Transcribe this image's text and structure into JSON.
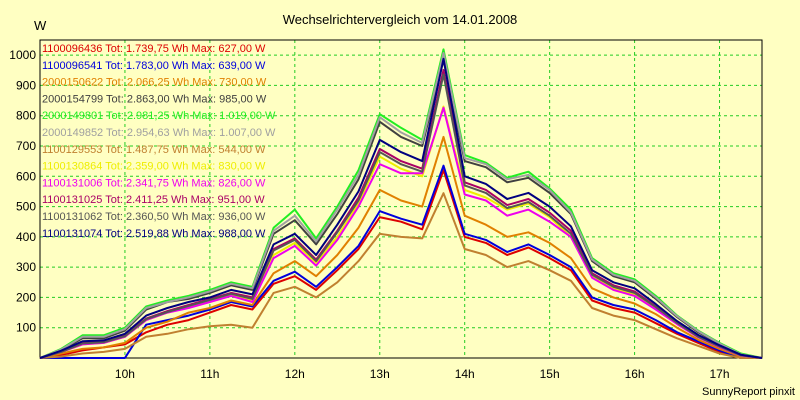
{
  "chart_data": {
    "type": "line",
    "title": "Wechselrichtervergleich vom 14.01.2008",
    "ylabel": "W",
    "xlabel": "",
    "footer": "SunnyReport pinxit",
    "grid": true,
    "legend_position": "top-left",
    "ylim": [
      0,
      1050
    ],
    "xlim": [
      9.0,
      17.5
    ],
    "yticks": [
      100,
      200,
      300,
      400,
      500,
      600,
      700,
      800,
      900,
      1000
    ],
    "xticks": [
      {
        "value": 10,
        "label": "10h"
      },
      {
        "value": 11,
        "label": "11h"
      },
      {
        "value": 12,
        "label": "12h"
      },
      {
        "value": 13,
        "label": "13h"
      },
      {
        "value": 14,
        "label": "14h"
      },
      {
        "value": 15,
        "label": "15h"
      },
      {
        "value": 16,
        "label": "16h"
      },
      {
        "value": 17,
        "label": "17h"
      }
    ],
    "x": [
      9.0,
      9.25,
      9.5,
      9.75,
      10.0,
      10.25,
      10.5,
      10.75,
      11.0,
      11.25,
      11.5,
      11.75,
      12.0,
      12.25,
      12.5,
      12.75,
      13.0,
      13.25,
      13.5,
      13.75,
      14.0,
      14.25,
      14.5,
      14.75,
      15.0,
      15.25,
      15.5,
      15.75,
      16.0,
      16.25,
      16.5,
      16.75,
      17.0,
      17.25,
      17.5
    ],
    "series": [
      {
        "name": "1100096436",
        "legend": "1100096436 Tot: 1.739,75 Wh Max: 627,00 W",
        "color": "#dd0000",
        "values": [
          0,
          10,
          25,
          35,
          45,
          85,
          110,
          125,
          150,
          175,
          160,
          245,
          270,
          225,
          290,
          360,
          465,
          450,
          425,
          620,
          400,
          380,
          340,
          365,
          330,
          290,
          190,
          165,
          150,
          115,
          80,
          50,
          20,
          0,
          0
        ]
      },
      {
        "name": "1100096541",
        "legend": "1100096541 Tot: 1.783,00 Wh Max: 639,00 W",
        "color": "#0000dd",
        "values": [
          0,
          0,
          0,
          0,
          0,
          110,
          125,
          140,
          160,
          185,
          170,
          255,
          285,
          235,
          300,
          370,
          485,
          460,
          440,
          635,
          410,
          390,
          350,
          375,
          340,
          300,
          200,
          175,
          160,
          125,
          85,
          55,
          25,
          0,
          0
        ]
      },
      {
        "name": "2000150622",
        "legend": "2000150622 Tot: 2.066,25 Wh Max: 730,00 W",
        "color": "#e08000",
        "values": [
          0,
          15,
          30,
          35,
          50,
          100,
          120,
          150,
          165,
          190,
          175,
          280,
          320,
          270,
          340,
          430,
          555,
          520,
          500,
          730,
          470,
          440,
          400,
          415,
          380,
          330,
          230,
          200,
          180,
          145,
          100,
          60,
          30,
          5,
          0
        ]
      },
      {
        "name": "2000154799",
        "legend": "2000154799 Tot: 2.863,00 Wh Max: 985,00 W",
        "color": "#404040",
        "values": [
          0,
          25,
          65,
          65,
          90,
          160,
          185,
          195,
          215,
          240,
          225,
          410,
          455,
          375,
          475,
          590,
          780,
          730,
          700,
          985,
          650,
          630,
          580,
          595,
          545,
          475,
          320,
          270,
          250,
          195,
          135,
          85,
          45,
          10,
          0
        ]
      },
      {
        "name": "2000149801",
        "legend": "2000149801 Tot: 2.981,25 Wh Max: 1.019,00 W",
        "color": "#22ee22",
        "values": [
          0,
          30,
          75,
          75,
          100,
          170,
          190,
          205,
          225,
          250,
          235,
          430,
          490,
          395,
          500,
          620,
          805,
          760,
          720,
          1019,
          670,
          645,
          595,
          615,
          560,
          490,
          330,
          280,
          260,
          205,
          140,
          90,
          50,
          15,
          0
        ]
      },
      {
        "name": "2000149852",
        "legend": "2000149852 Tot: 2.954,63 Wh Max: 1.007,00 W",
        "color": "#a0a0a0",
        "values": [
          0,
          28,
          70,
          70,
          95,
          165,
          185,
          200,
          220,
          245,
          230,
          420,
          470,
          385,
          490,
          605,
          795,
          745,
          710,
          1007,
          660,
          640,
          590,
          605,
          555,
          480,
          325,
          275,
          255,
          200,
          138,
          88,
          48,
          12,
          0
        ]
      },
      {
        "name": "1100129553",
        "legend": "1100129553 Tot: 1.487,75 Wh Max: 544,00 W",
        "color": "#c08030",
        "values": [
          0,
          5,
          15,
          20,
          30,
          70,
          80,
          95,
          105,
          110,
          100,
          215,
          235,
          200,
          250,
          320,
          410,
          400,
          395,
          544,
          360,
          340,
          300,
          320,
          290,
          255,
          165,
          140,
          125,
          95,
          65,
          40,
          15,
          0,
          0
        ]
      },
      {
        "name": "1100130864",
        "legend": "1100130864 Tot: 2.359,00 Wh Max: 830,00 W",
        "color": "#eeee00",
        "values": [
          0,
          20,
          45,
          50,
          70,
          125,
          150,
          170,
          190,
          210,
          190,
          340,
          380,
          315,
          400,
          510,
          665,
          625,
          600,
          830,
          555,
          530,
          490,
          510,
          465,
          400,
          270,
          230,
          210,
          165,
          115,
          70,
          38,
          8,
          0
        ]
      },
      {
        "name": "1100131006",
        "legend": "1100131006 Tot: 2.341,75 Wh Max: 826,00 W",
        "color": "#ee00ee",
        "values": [
          0,
          20,
          45,
          50,
          70,
          125,
          150,
          165,
          185,
          205,
          185,
          330,
          370,
          305,
          390,
          500,
          640,
          610,
          610,
          826,
          540,
          520,
          470,
          490,
          450,
          400,
          265,
          225,
          205,
          160,
          112,
          68,
          36,
          8,
          0
        ]
      },
      {
        "name": "1100131025",
        "legend": "1100131025 Tot: 2.411,25 Wh Max: 951,00 W",
        "color": "#aa0066",
        "values": [
          0,
          22,
          50,
          55,
          75,
          130,
          155,
          175,
          195,
          215,
          200,
          360,
          395,
          325,
          420,
          530,
          690,
          650,
          625,
          951,
          580,
          555,
          505,
          525,
          480,
          420,
          280,
          240,
          220,
          170,
          118,
          72,
          40,
          10,
          0
        ]
      },
      {
        "name": "1100131062",
        "legend": "1100131062 Tot: 2.360,50 Wh Max: 936,00 W",
        "color": "#555555",
        "values": [
          0,
          20,
          48,
          52,
          72,
          128,
          152,
          172,
          192,
          212,
          195,
          355,
          390,
          320,
          415,
          520,
          680,
          640,
          615,
          936,
          570,
          545,
          495,
          515,
          470,
          410,
          275,
          235,
          215,
          168,
          116,
          70,
          38,
          9,
          0
        ]
      },
      {
        "name": "1100131074",
        "legend": "1100131074 Tot: 2.519,88 Wh Max: 988,00 W",
        "color": "#000080",
        "values": [
          0,
          24,
          55,
          58,
          80,
          140,
          165,
          185,
          200,
          225,
          210,
          375,
          410,
          340,
          440,
          550,
          720,
          680,
          650,
          988,
          600,
          575,
          525,
          545,
          500,
          435,
          290,
          250,
          230,
          178,
          122,
          76,
          42,
          11,
          0
        ]
      }
    ]
  }
}
